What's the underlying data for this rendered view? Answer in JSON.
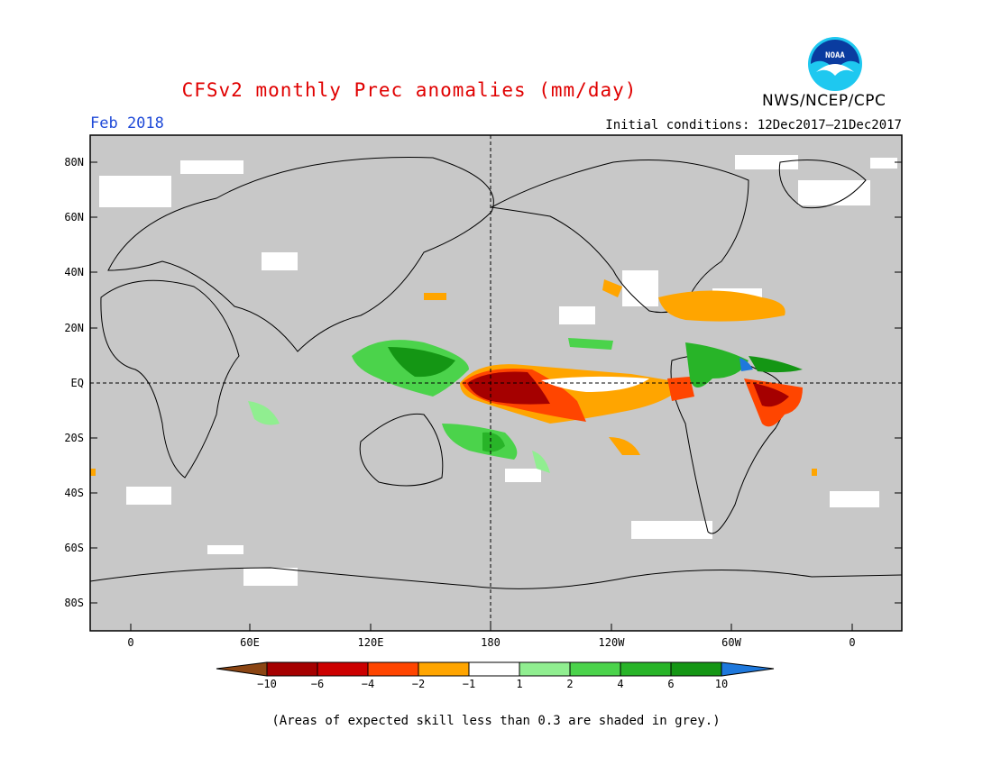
{
  "header": {
    "title": "CFSv2 monthly Prec anomalies (mm/day)",
    "month": "Feb 2018",
    "initial_conditions": "Initial conditions: 12Dec2017–21Dec2017",
    "agency": "NWS/NCEP/CPC",
    "logo_text": "NOAA"
  },
  "map": {
    "lat_labels": [
      "80N",
      "60N",
      "40N",
      "20N",
      "EQ",
      "20S",
      "40S",
      "60S",
      "80S"
    ],
    "lon_labels": [
      "0",
      "60E",
      "120E",
      "180",
      "120W",
      "60W",
      "0"
    ],
    "colors": {
      "grey_skill": "#c8c8c8",
      "brown": "#8b4513",
      "dark_red": "#a50000",
      "red": "#cc0000",
      "red_orange": "#ff4500",
      "orange": "#ffa500",
      "white": "#ffffff",
      "light_green": "#90ee90",
      "green": "#4bd34b",
      "mid_green": "#28b428",
      "dark_green": "#149614",
      "blue": "#1e78dc"
    }
  },
  "colorbar": {
    "labels": [
      "−10",
      "−6",
      "−4",
      "−2",
      "−1",
      "1",
      "2",
      "4",
      "6",
      "10"
    ]
  },
  "footnote": "(Areas of expected skill less than 0.3 are shaded in grey.)"
}
